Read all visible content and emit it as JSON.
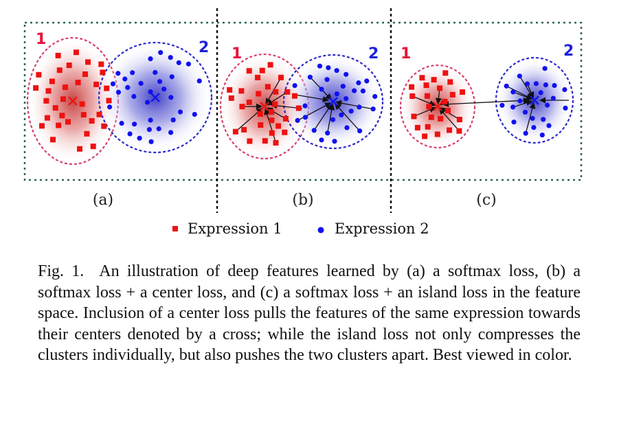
{
  "figure": {
    "panels": [
      {
        "label": "(a)",
        "cluster_labels": [
          "1",
          "2"
        ]
      },
      {
        "label": "(b)",
        "cluster_labels": [
          "1",
          "2"
        ]
      },
      {
        "label": "(c)",
        "cluster_labels": [
          "1",
          "2"
        ]
      }
    ],
    "legend": [
      {
        "label": "Expression 1",
        "color": "#ee1111",
        "marker": "square"
      },
      {
        "label": "Expression 2",
        "color": "#1111ee",
        "marker": "circle"
      }
    ],
    "colors": {
      "expression1": "#ee1111",
      "expression2": "#1111ee",
      "cluster1_border": "#d8406a",
      "cluster2_border": "#2a2acc",
      "frame": "#2f6650",
      "cluster1_label": "#e8113a",
      "cluster2_label": "#2020dd"
    }
  },
  "caption": {
    "figure_number": "Fig. 1.",
    "text": "An illustration of deep features learned by (a) a softmax loss, (b) a softmax loss + a center loss, and (c) a softmax loss + an island loss in the feature space. Inclusion of a center loss pulls the features of the same expression towards their centers denoted by a cross; while the island loss not only compresses the clusters individually, but also pushes the two clusters apart. Best viewed in color."
  }
}
